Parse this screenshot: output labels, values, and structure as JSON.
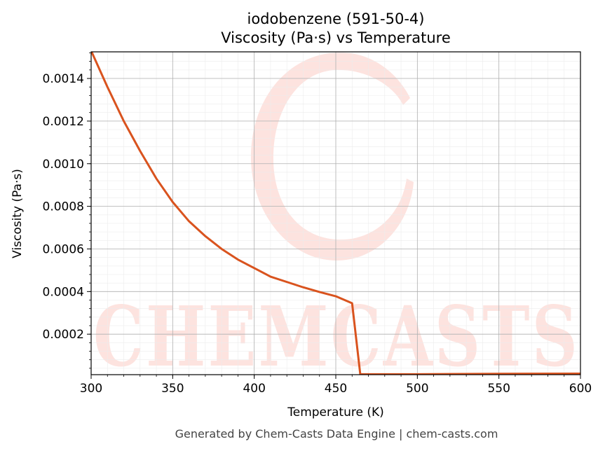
{
  "chart_data": {
    "type": "line",
    "title": "iodobenzene (591-50-4)",
    "subtitle": "Viscosity (Pa·s) vs Temperature",
    "xlabel": "Temperature (K)",
    "ylabel": "Viscosity (Pa·s)",
    "xlim": [
      300,
      600
    ],
    "ylim": [
      1e-05,
      0.001525
    ],
    "x_ticks": [
      300,
      350,
      400,
      450,
      500,
      550,
      600
    ],
    "x_tick_labels": [
      "300",
      "350",
      "400",
      "450",
      "500",
      "550",
      "600"
    ],
    "y_ticks": [
      0.0002,
      0.0004,
      0.0006,
      0.0008,
      0.001,
      0.0012,
      0.0014
    ],
    "y_tick_labels": [
      "0.0002",
      "0.0004",
      "0.0006",
      "0.0008",
      "0.0010",
      "0.0012",
      "0.0014"
    ],
    "grid": true,
    "series": [
      {
        "color": "#d9531e",
        "x": [
          300,
          310,
          320,
          330,
          340,
          350,
          360,
          370,
          380,
          390,
          400,
          410,
          420,
          430,
          440,
          450,
          460,
          465,
          470,
          480,
          500,
          550,
          600
        ],
        "y": [
          0.00153,
          0.00136,
          0.0012,
          0.00106,
          0.00093,
          0.00082,
          0.00073,
          0.00066,
          0.0006,
          0.00055,
          0.00051,
          0.00047,
          0.000445,
          0.00042,
          0.000398,
          0.000378,
          0.000345,
          1.2e-05,
          1.2e-05,
          1.2e-05,
          1.2e-05,
          1.4e-05,
          1.5e-05
        ]
      }
    ]
  },
  "watermark": {
    "text": "CHEMCASTS",
    "color": "#fde3df"
  },
  "footer": "Generated by Chem-Casts Data Engine | chem-casts.com"
}
